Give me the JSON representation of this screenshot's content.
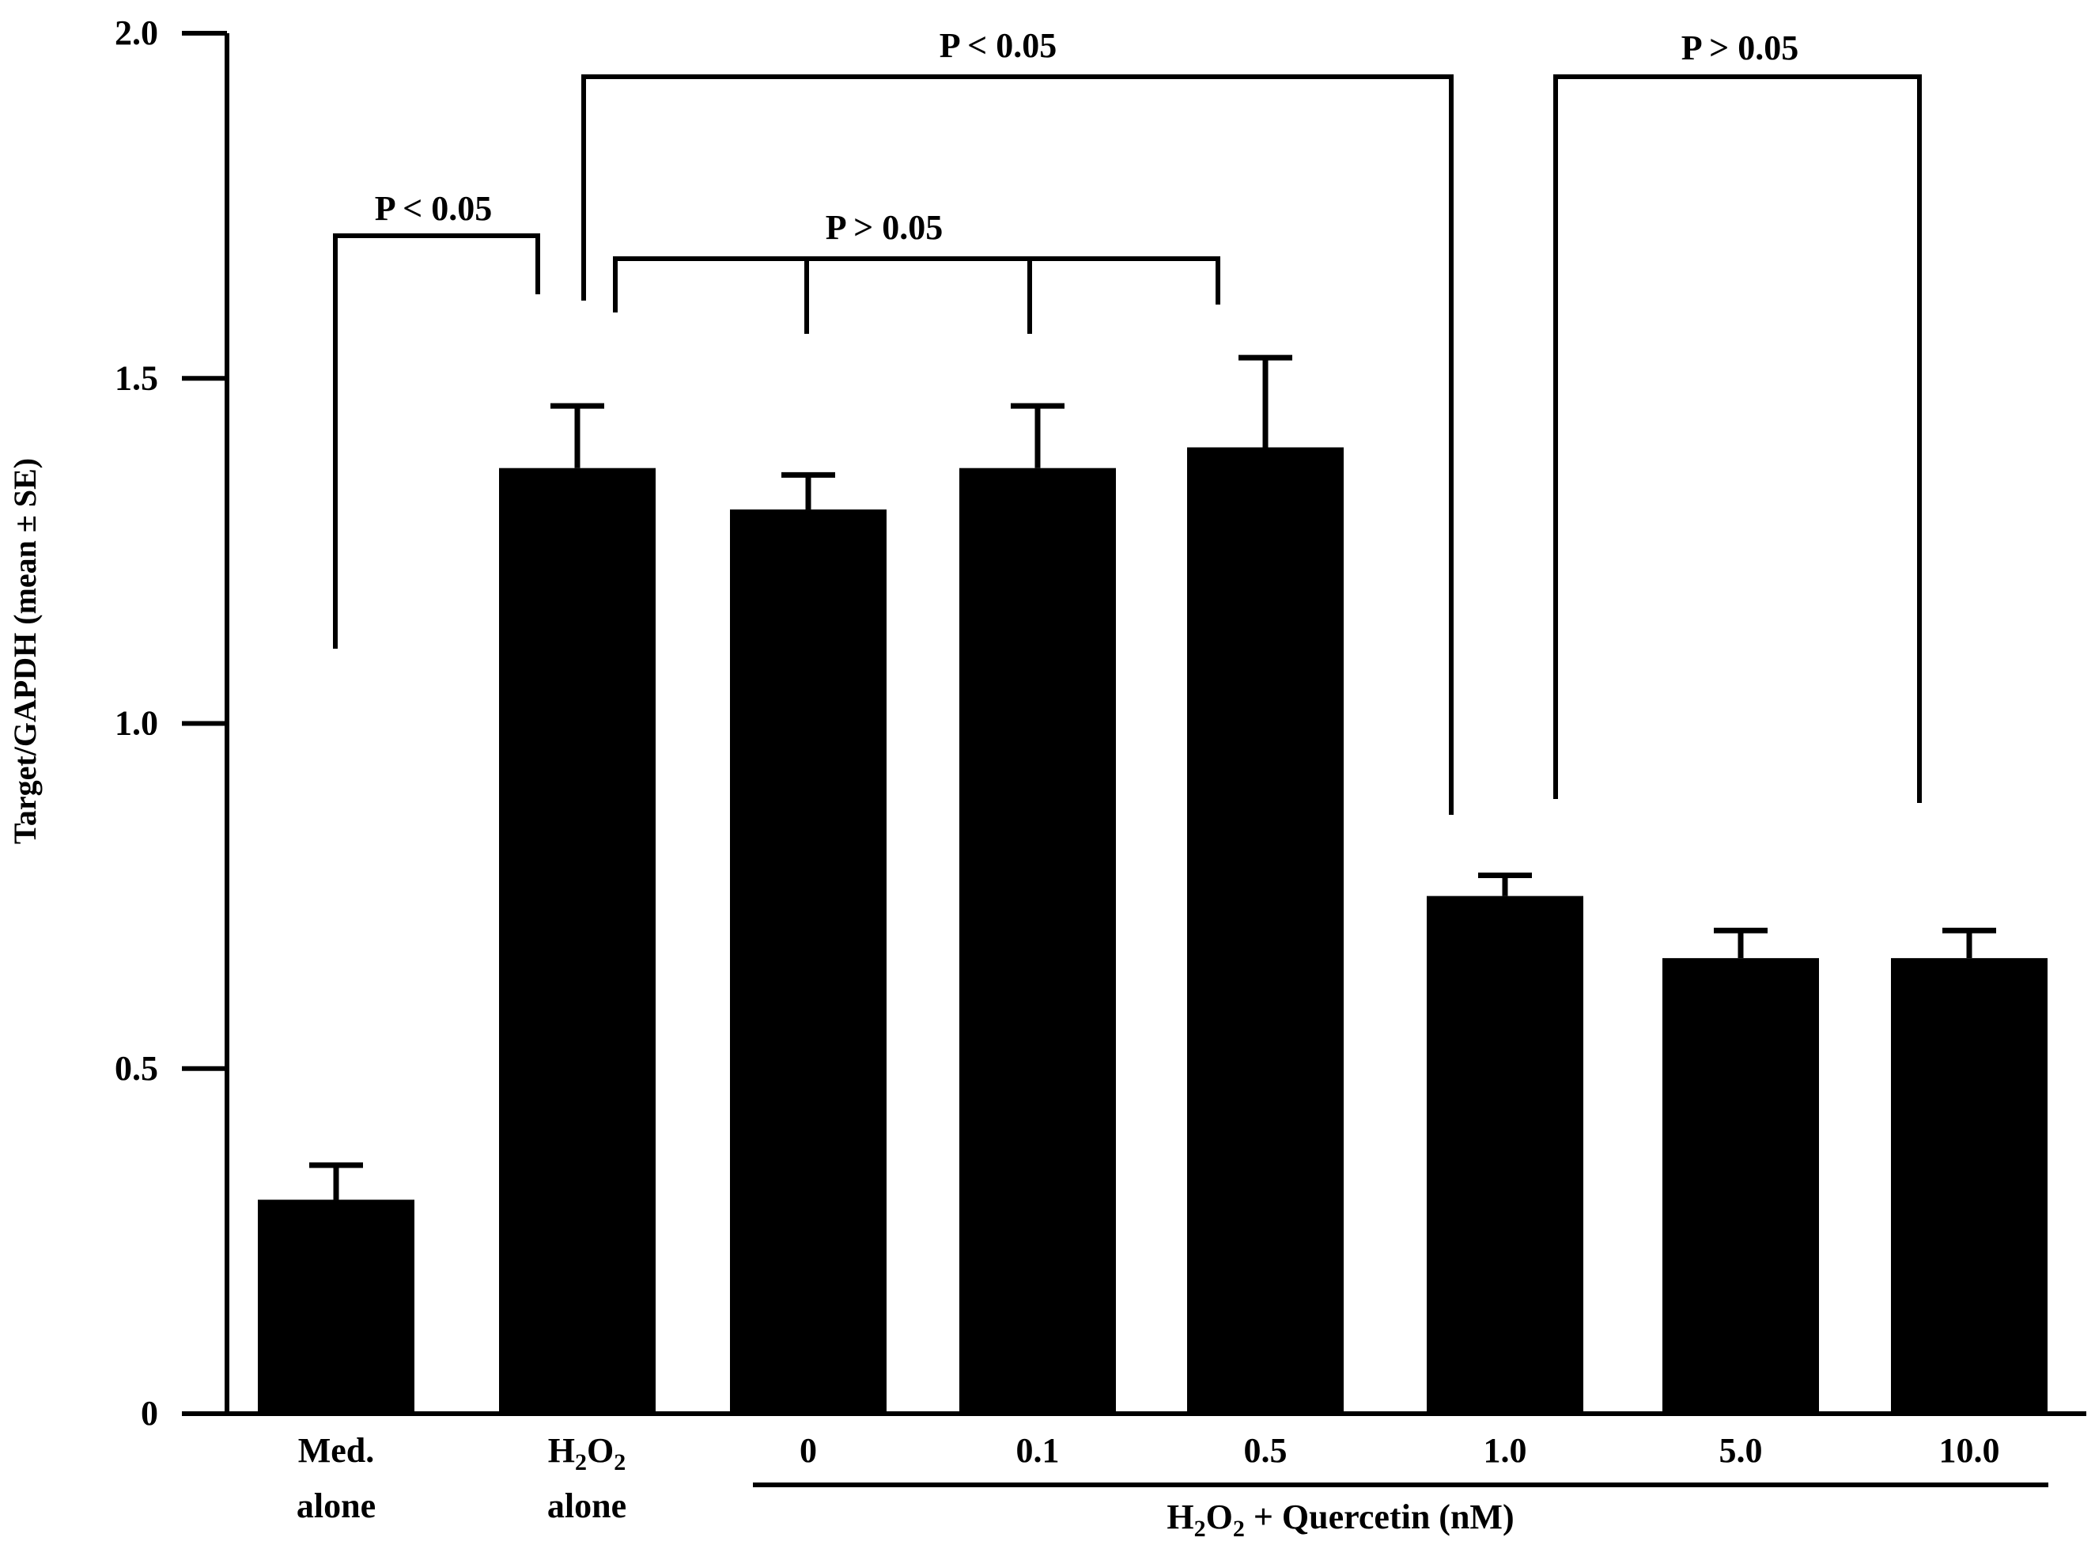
{
  "chart_data": {
    "type": "bar",
    "ylabel": "Target/GAPDH (mean ± SE)",
    "ylim": [
      0,
      2.0
    ],
    "yticks": [
      "0",
      "0.5",
      "1.0",
      "1.5",
      "2.0"
    ],
    "ytick_values": [
      0,
      0.5,
      1.0,
      1.5,
      2.0
    ],
    "categories": [
      {
        "line1": "Med.",
        "line2": "alone"
      },
      {
        "line1": "H",
        "sub1": "2",
        "mid": "O",
        "sub2": "2",
        "line2": "alone"
      },
      {
        "line1": "0"
      },
      {
        "line1": "0.1"
      },
      {
        "line1": "0.5"
      },
      {
        "line1": "1.0"
      },
      {
        "line1": "5.0"
      },
      {
        "line1": "10.0"
      }
    ],
    "values": [
      0.31,
      1.37,
      1.31,
      1.37,
      1.4,
      0.75,
      0.66,
      0.66
    ],
    "errors": [
      0.05,
      0.09,
      0.05,
      0.09,
      0.13,
      0.03,
      0.04,
      0.04
    ],
    "bar_color": "#000000",
    "grid": false,
    "group_label": {
      "pre": "H",
      "sub1": "2",
      "mid": "O",
      "sub2": "2",
      "post": " + Quercetin  (nM)"
    },
    "annotations": [
      {
        "text": "P < 0.05",
        "from": 0,
        "to": 1
      },
      {
        "text": "P < 0.05",
        "from": 1,
        "to": 5
      },
      {
        "text": "P > 0.05",
        "from": 1,
        "to": 4
      },
      {
        "text": "P > 0.05",
        "from": 5,
        "to": 7
      }
    ]
  }
}
